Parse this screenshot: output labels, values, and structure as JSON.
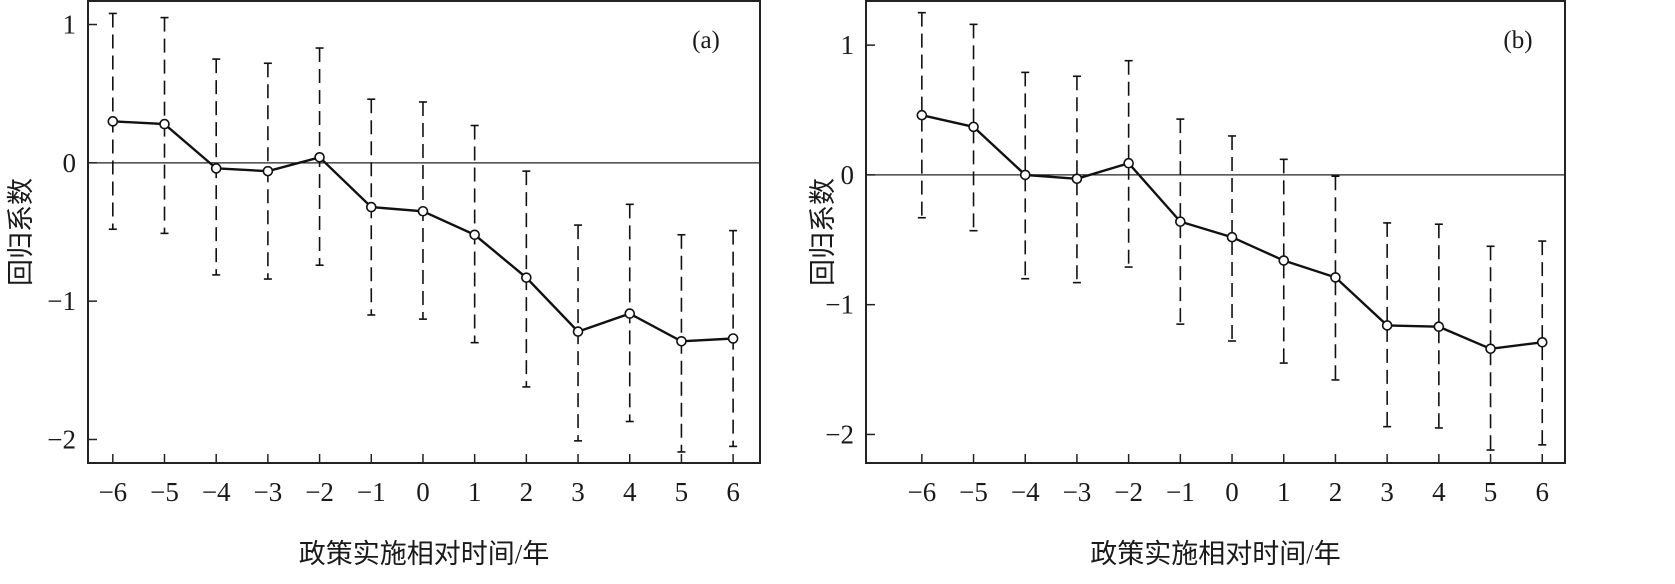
{
  "chart_data": [
    {
      "type": "line",
      "panel_label": "(a)",
      "xlabel": "政策实施相对时间/年",
      "ylabel": "回归系数",
      "x": [
        -6,
        -5,
        -4,
        -3,
        -2,
        -1,
        0,
        1,
        2,
        3,
        4,
        5,
        6
      ],
      "x_tick_labels": [
        "−6",
        "−5",
        "−4",
        "−3",
        "−2",
        "−1",
        "0",
        "1",
        "2",
        "3",
        "4",
        "5",
        "6"
      ],
      "y_ticks": [
        1,
        0,
        -1,
        -2
      ],
      "y_tick_labels": [
        "1",
        "0",
        "−1",
        "−2"
      ],
      "xlim": [
        -6.48,
        6.52
      ],
      "ylim": [
        -2.17,
        1.17
      ],
      "reference_line": 0,
      "series": [
        {
          "name": "回归系数",
          "values": [
            0.3,
            0.28,
            -0.04,
            -0.06,
            0.04,
            -0.32,
            -0.35,
            -0.52,
            -0.83,
            -1.22,
            -1.09,
            -1.29,
            -1.27
          ],
          "ci_upper": [
            1.08,
            1.05,
            0.75,
            0.72,
            0.83,
            0.46,
            0.44,
            0.27,
            -0.06,
            -0.45,
            -0.3,
            -0.52,
            -0.49
          ],
          "ci_lower": [
            -0.48,
            -0.51,
            -0.81,
            -0.84,
            -0.74,
            -1.1,
            -1.13,
            -1.3,
            -1.62,
            -2.01,
            -1.87,
            -2.09,
            -2.05
          ]
        }
      ]
    },
    {
      "type": "line",
      "panel_label": "(b)",
      "xlabel": "政策实施相对时间/年",
      "ylabel": "回归系数",
      "x": [
        -6,
        -5,
        -4,
        -3,
        -2,
        -1,
        0,
        1,
        2,
        3,
        4,
        5,
        6
      ],
      "x_tick_labels": [
        "−6",
        "−5",
        "−4",
        "−3",
        "−2",
        "−1",
        "0",
        "1",
        "2",
        "3",
        "4",
        "5",
        "6"
      ],
      "y_ticks": [
        1,
        0,
        -1,
        -2
      ],
      "y_tick_labels": [
        "1",
        "0",
        "−1",
        "−2"
      ],
      "xlim": [
        -7.08,
        6.44
      ],
      "ylim": [
        -2.22,
        1.34
      ],
      "reference_line": 0,
      "series": [
        {
          "name": "回归系数",
          "values": [
            0.46,
            0.37,
            0.0,
            -0.03,
            0.09,
            -0.36,
            -0.48,
            -0.66,
            -0.79,
            -1.16,
            -1.17,
            -1.34,
            -1.29
          ],
          "ci_upper": [
            1.25,
            1.16,
            0.79,
            0.76,
            0.88,
            0.43,
            0.3,
            0.12,
            -0.01,
            -0.37,
            -0.38,
            -0.55,
            -0.51
          ],
          "ci_lower": [
            -0.33,
            -0.43,
            -0.8,
            -0.83,
            -0.71,
            -1.15,
            -1.28,
            -1.45,
            -1.58,
            -1.94,
            -1.95,
            -2.12,
            -2.08
          ]
        }
      ]
    }
  ]
}
